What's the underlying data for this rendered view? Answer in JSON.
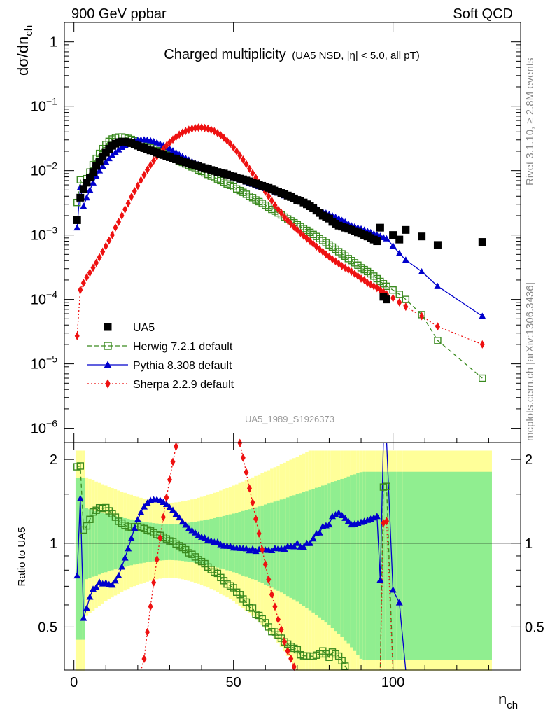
{
  "header": {
    "left": "900 GeV ppbar",
    "right": "Soft QCD"
  },
  "side": {
    "top": "Rivet 3.1.10, ≥ 2.8M events",
    "bottom": "mcplots.cern.ch [arXiv:1306.3436]"
  },
  "analysis_id": "UA5_1989_S1926373",
  "chart_data": {
    "type": "scatter",
    "title": "Charged multiplicity",
    "subtitle": "(UA5 NSD, |η| < 5.0, all pT)",
    "ylabel": "dσ/dn_ch",
    "xlabel": "n_ch",
    "ratio_ylabel": "Ratio to UA5",
    "xlim": [
      -3,
      140
    ],
    "ylim": [
      6e-07,
      2
    ],
    "ratio_ylim": [
      0.35,
      2.3
    ],
    "log_y": true,
    "legend_position": "bottom-left",
    "colors": {
      "data": "#000000",
      "herwig": "#3a8a1f",
      "pythia": "#0000cc",
      "sherpa": "#ee1111",
      "band_inner": "#90ee90",
      "band_outer": "#ffff99"
    },
    "legend": [
      {
        "key": "data",
        "label": "UA5"
      },
      {
        "key": "herwig",
        "label": "Herwig 7.2.1 default"
      },
      {
        "key": "pythia",
        "label": "Pythia 8.308 default"
      },
      {
        "key": "sherpa",
        "label": "Sherpa 2.2.9 default"
      }
    ],
    "x_ticks": [
      0,
      50,
      100
    ],
    "y_ticks": [
      {
        "value": 1,
        "label": "1"
      },
      {
        "value": 0.1,
        "label": "10^-1"
      },
      {
        "value": 0.01,
        "label": "10^-2"
      },
      {
        "value": 0.001,
        "label": "10^-3"
      },
      {
        "value": 0.0001,
        "label": "10^-4"
      },
      {
        "value": 1e-05,
        "label": "10^-5"
      },
      {
        "value": 1e-06,
        "label": "10^-6"
      }
    ],
    "ratio_ticks": [
      {
        "value": 0.5,
        "label": "0.5"
      },
      {
        "value": 1,
        "label": "1"
      },
      {
        "value": 2,
        "label": "2"
      }
    ],
    "series": {
      "data": {
        "x": [
          1,
          2,
          3,
          4,
          5,
          6,
          7,
          8,
          9,
          10,
          11,
          12,
          13,
          14,
          15,
          16,
          17,
          18,
          19,
          20,
          21,
          22,
          23,
          24,
          25,
          26,
          27,
          28,
          29,
          30,
          31,
          32,
          33,
          34,
          35,
          36,
          37,
          38,
          39,
          40,
          41,
          42,
          43,
          44,
          45,
          46,
          47,
          48,
          49,
          50,
          51,
          52,
          53,
          54,
          55,
          56,
          57,
          58,
          59,
          60,
          61,
          62,
          63,
          64,
          65,
          66,
          67,
          68,
          69,
          70,
          71,
          72,
          73,
          74,
          75,
          76,
          77,
          78,
          79,
          80,
          81,
          82,
          83,
          84,
          85,
          86,
          87,
          88,
          89,
          90,
          91,
          92,
          93,
          94,
          95,
          96,
          97,
          98,
          100,
          102,
          104,
          109,
          114,
          128
        ],
        "y": [
          0.0017,
          0.0038,
          0.0052,
          0.0065,
          0.0078,
          0.0095,
          0.0118,
          0.0138,
          0.0165,
          0.019,
          0.0218,
          0.0243,
          0.0262,
          0.0277,
          0.0282,
          0.0282,
          0.0277,
          0.0267,
          0.0255,
          0.0244,
          0.0234,
          0.0224,
          0.0215,
          0.0206,
          0.0198,
          0.019,
          0.0182,
          0.0175,
          0.0168,
          0.0162,
          0.0155,
          0.015,
          0.0144,
          0.0139,
          0.0134,
          0.013,
          0.0125,
          0.0121,
          0.0117,
          0.0113,
          0.0109,
          0.0106,
          0.0102,
          0.0099,
          0.0095,
          0.0093,
          0.009,
          0.0087,
          0.0084,
          0.0081,
          0.0078,
          0.0075,
          0.0073,
          0.007,
          0.0068,
          0.0065,
          0.0063,
          0.006,
          0.0058,
          0.0056,
          0.0054,
          0.0052,
          0.0049,
          0.0047,
          0.0045,
          0.0043,
          0.0041,
          0.0039,
          0.0037,
          0.0035,
          0.0034,
          0.0032,
          0.003,
          0.0028,
          0.0026,
          0.0024,
          0.0022,
          0.002,
          0.0019,
          0.0018,
          0.0016,
          0.0015,
          0.0014,
          0.00135,
          0.0013,
          0.00125,
          0.0012,
          0.00115,
          0.0011,
          0.00105,
          0.001,
          0.00095,
          0.0009,
          0.00085,
          0.0008,
          0.0013,
          0.00011,
          0.0001,
          0.001,
          0.00085,
          0.0012,
          0.00095,
          0.0007,
          0.00078
        ]
      },
      "herwig": {
        "x": [
          1,
          2,
          3,
          4,
          5,
          6,
          7,
          8,
          9,
          10,
          11,
          12,
          13,
          14,
          15,
          16,
          17,
          18,
          19,
          20,
          21,
          22,
          23,
          24,
          25,
          26,
          27,
          28,
          29,
          30,
          31,
          32,
          33,
          34,
          35,
          36,
          37,
          38,
          39,
          40,
          41,
          42,
          43,
          44,
          45,
          46,
          47,
          48,
          49,
          50,
          51,
          52,
          53,
          54,
          55,
          56,
          57,
          58,
          59,
          60,
          61,
          62,
          63,
          64,
          65,
          66,
          67,
          68,
          69,
          70,
          71,
          72,
          73,
          74,
          75,
          76,
          77,
          78,
          79,
          80,
          81,
          82,
          83,
          84,
          85,
          86,
          87,
          88,
          89,
          90,
          91,
          92,
          93,
          94,
          95,
          96,
          97,
          98,
          100,
          102,
          104,
          109,
          114,
          128
        ],
        "y": [
          0.0032,
          0.0072,
          0.0058,
          0.0075,
          0.0095,
          0.0123,
          0.0155,
          0.0185,
          0.022,
          0.0255,
          0.0285,
          0.031,
          0.0325,
          0.0332,
          0.0333,
          0.0327,
          0.0317,
          0.0305,
          0.0292,
          0.028,
          0.0267,
          0.0253,
          0.024,
          0.0228,
          0.0216,
          0.0204,
          0.0194,
          0.0184,
          0.0174,
          0.0165,
          0.0157,
          0.0149,
          0.0141,
          0.0134,
          0.0127,
          0.012,
          0.0114,
          0.0108,
          0.0102,
          0.0097,
          0.0092,
          0.0087,
          0.0082,
          0.0078,
          0.0074,
          0.007,
          0.0066,
          0.0062,
          0.0059,
          0.0056,
          0.0052,
          0.0049,
          0.0046,
          0.0043,
          0.004,
          0.0038,
          0.0035,
          0.0033,
          0.0031,
          0.0029,
          0.0027,
          0.0025,
          0.00235,
          0.0022,
          0.00205,
          0.0019,
          0.00178,
          0.00166,
          0.00155,
          0.00145,
          0.00135,
          0.00126,
          0.00118,
          0.0011,
          0.00102,
          0.00095,
          0.00088,
          0.00082,
          0.00076,
          0.0007,
          0.00065,
          0.0006,
          0.00055,
          0.00051,
          0.00047,
          0.00043,
          0.0004,
          0.00037,
          0.00034,
          0.00031,
          0.00029,
          0.00027,
          0.00025,
          0.00023,
          0.00021,
          0.00019,
          0.000175,
          0.00016,
          0.00014,
          0.00012,
          0.0001,
          5.8e-05,
          2.3e-05,
          6e-06
        ]
      },
      "pythia": {
        "x": [
          1,
          2,
          3,
          4,
          5,
          6,
          7,
          8,
          9,
          10,
          11,
          12,
          13,
          14,
          15,
          16,
          17,
          18,
          19,
          20,
          21,
          22,
          23,
          24,
          25,
          26,
          27,
          28,
          29,
          30,
          31,
          32,
          33,
          34,
          35,
          36,
          37,
          38,
          39,
          40,
          41,
          42,
          43,
          44,
          45,
          46,
          47,
          48,
          49,
          50,
          51,
          52,
          53,
          54,
          55,
          56,
          57,
          58,
          59,
          60,
          61,
          62,
          63,
          64,
          65,
          66,
          67,
          68,
          69,
          70,
          71,
          72,
          73,
          74,
          75,
          76,
          77,
          78,
          79,
          80,
          81,
          82,
          83,
          84,
          85,
          86,
          87,
          88,
          89,
          90,
          91,
          92,
          93,
          94,
          95,
          96,
          97,
          98,
          100,
          102,
          104,
          109,
          114,
          128
        ],
        "y": [
          0.0013,
          0.0055,
          0.0028,
          0.0038,
          0.005,
          0.0065,
          0.0082,
          0.01,
          0.0118,
          0.0137,
          0.0155,
          0.0172,
          0.0192,
          0.0212,
          0.0232,
          0.025,
          0.0265,
          0.0278,
          0.0289,
          0.0297,
          0.0302,
          0.0303,
          0.03,
          0.0294,
          0.0284,
          0.0273,
          0.026,
          0.0246,
          0.0232,
          0.0218,
          0.0204,
          0.0191,
          0.0178,
          0.0166,
          0.0156,
          0.0147,
          0.0139,
          0.0132,
          0.0125,
          0.0119,
          0.0114,
          0.0109,
          0.0104,
          0.01,
          0.0096,
          0.0092,
          0.0088,
          0.0085,
          0.0082,
          0.0078,
          0.0075,
          0.0072,
          0.007,
          0.0067,
          0.0064,
          0.0062,
          0.0059,
          0.0057,
          0.0055,
          0.0053,
          0.0051,
          0.0049,
          0.0047,
          0.0045,
          0.0043,
          0.0041,
          0.004,
          0.0038,
          0.0036,
          0.0035,
          0.0033,
          0.0031,
          0.003,
          0.0028,
          0.0027,
          0.0026,
          0.0024,
          0.0023,
          0.0022,
          0.0021,
          0.002,
          0.0019,
          0.0018,
          0.0017,
          0.0016,
          0.0015,
          0.0014,
          0.00135,
          0.0013,
          0.00125,
          0.0012,
          0.00115,
          0.0011,
          0.00105,
          0.001,
          0.00096,
          0.00092,
          0.00088,
          0.00068,
          0.00052,
          0.00041,
          0.00027,
          0.00016,
          5.5e-05
        ]
      },
      "sherpa": {
        "x": [
          1,
          2,
          3,
          4,
          5,
          6,
          7,
          8,
          9,
          10,
          11,
          12,
          13,
          14,
          15,
          16,
          17,
          18,
          19,
          20,
          21,
          22,
          23,
          24,
          25,
          26,
          27,
          28,
          29,
          30,
          31,
          32,
          33,
          34,
          35,
          36,
          37,
          38,
          39,
          40,
          41,
          42,
          43,
          44,
          45,
          46,
          47,
          48,
          49,
          50,
          51,
          52,
          53,
          54,
          55,
          56,
          57,
          58,
          59,
          60,
          61,
          62,
          63,
          64,
          65,
          66,
          67,
          68,
          69,
          70,
          71,
          72,
          73,
          74,
          75,
          76,
          77,
          78,
          79,
          80,
          81,
          82,
          83,
          84,
          85,
          86,
          87,
          88,
          89,
          90,
          91,
          92,
          93,
          94,
          95,
          96,
          97,
          98,
          100,
          102,
          104,
          109,
          114,
          128
        ],
        "y": [
          2.7e-05,
          0.00014,
          0.00018,
          0.00022,
          0.00026,
          0.00031,
          0.00037,
          0.00045,
          0.00055,
          0.00067,
          0.00082,
          0.001,
          0.0013,
          0.0016,
          0.002,
          0.0025,
          0.0031,
          0.0039,
          0.0048,
          0.0058,
          0.0071,
          0.0086,
          0.0103,
          0.0122,
          0.0143,
          0.0166,
          0.019,
          0.0217,
          0.0245,
          0.0274,
          0.0304,
          0.0334,
          0.0362,
          0.0388,
          0.0412,
          0.0432,
          0.0448,
          0.046,
          0.0466,
          0.0466,
          0.046,
          0.0448,
          0.0431,
          0.0409,
          0.0383,
          0.0354,
          0.0323,
          0.0291,
          0.026,
          0.0229,
          0.0199,
          0.0172,
          0.0148,
          0.0126,
          0.0107,
          0.0091,
          0.0077,
          0.0065,
          0.0055,
          0.0047,
          0.004,
          0.0034,
          0.0029,
          0.0025,
          0.0022,
          0.0019,
          0.00168,
          0.0015,
          0.00133,
          0.0012,
          0.00108,
          0.00097,
          0.00088,
          0.0008,
          0.00073,
          0.00066,
          0.0006,
          0.00055,
          0.0005,
          0.00046,
          0.00042,
          0.00039,
          0.00036,
          0.00033,
          0.00031,
          0.00029,
          0.00027,
          0.00025,
          0.00023,
          0.00021,
          0.0002,
          0.00018,
          0.00017,
          0.00016,
          0.00015,
          0.00014,
          0.00013,
          0.00012,
          0.000105,
          9e-05,
          7.7e-05,
          5.5e-05,
          3.8e-05,
          2e-05
        ]
      }
    }
  }
}
